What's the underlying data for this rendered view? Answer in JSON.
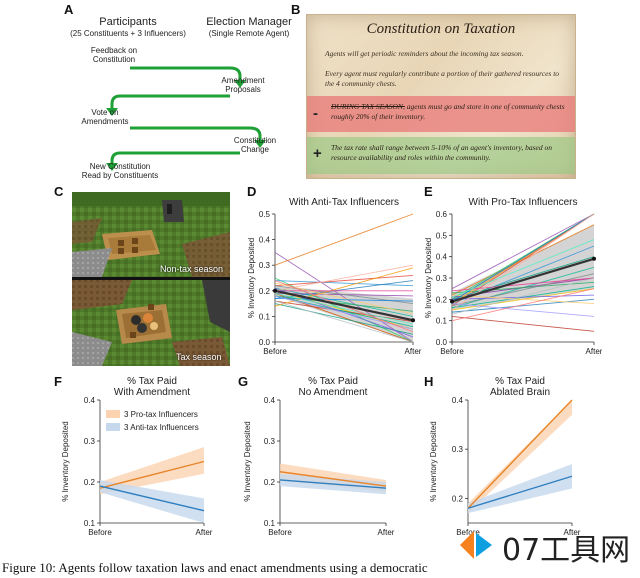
{
  "panels": {
    "A": "A",
    "B": "B",
    "C": "C",
    "D": "D",
    "E": "E",
    "F": "F",
    "G": "G",
    "H": "H"
  },
  "panelA": {
    "participants_title": "Participants",
    "participants_sub": "(25 Constituents + 3 Influencers)",
    "manager_title": "Election Manager",
    "manager_sub": "(Single Remote Agent)",
    "step1": [
      "Feedback on",
      "Constitution"
    ],
    "step2": [
      "Amendment",
      "Proposals"
    ],
    "step3": [
      "Vote on",
      "Amendments"
    ],
    "step4": [
      "Constitution",
      "Change"
    ],
    "step5": [
      "New Constitution",
      "Read by Constituents"
    ]
  },
  "panelB": {
    "title": "Constitution on Taxation",
    "para1": "Agents will get periodic reminders about the incoming tax season.",
    "para2": "Every agent must regularly contribute a portion of their gathered resources to the 4 community chests.",
    "minus_sign": "-",
    "minus_lead": "DURING TAX SEASON,",
    "minus_text": " agents must go and store in one of community chests roughly 20% of their inventory.",
    "plus_sign": "+",
    "plus_text": "The tax rate shall range between 5-10% of an agent's inventory, based on resource availability and roles within the community."
  },
  "panelC": {
    "label_top": "Non-tax season",
    "label_bottom": "Tax season"
  },
  "chart_data": [
    {
      "id": "D",
      "type": "line",
      "title": "With Anti-Tax Influencers",
      "ylabel": "% Inventory Deposited",
      "x": [
        "Before",
        "After"
      ],
      "ylim": [
        0.0,
        0.5
      ],
      "yticks": [
        "0.0",
        "0.1",
        "0.2",
        "0.3",
        "0.4",
        "0.5"
      ],
      "mean": [
        0.2,
        0.085
      ],
      "ci_low": [
        0.18,
        0.0
      ],
      "ci_high": [
        0.22,
        0.17
      ],
      "series_colors": [
        "#9b59b6",
        "#e67e22",
        "#2ecc71",
        "#3498db",
        "#e74c3c",
        "#1abc9c",
        "#f1c40f",
        "#8e44ad",
        "#d35400",
        "#27ae60",
        "#2980b9",
        "#c0392b",
        "#16a085",
        "#f39c12",
        "#7f8c8d",
        "#e84393",
        "#00b894",
        "#6c5ce7",
        "#fdcb6e",
        "#0984e3",
        "#b2bec3",
        "#fab1a0",
        "#55efc4",
        "#a29bfe",
        "#ff7675"
      ],
      "lines": [
        [
          0.35,
          0.0
        ],
        [
          0.3,
          0.5
        ],
        [
          0.25,
          0.0
        ],
        [
          0.24,
          0.22
        ],
        [
          0.22,
          0.26
        ],
        [
          0.21,
          0.1
        ],
        [
          0.2,
          0.05
        ],
        [
          0.19,
          0.18
        ],
        [
          0.19,
          0.0
        ],
        [
          0.18,
          0.12
        ],
        [
          0.17,
          0.24
        ],
        [
          0.16,
          0.08
        ],
        [
          0.15,
          0.03
        ],
        [
          0.14,
          0.29
        ],
        [
          0.22,
          0.15
        ],
        [
          0.2,
          0.2
        ],
        [
          0.18,
          0.06
        ],
        [
          0.21,
          0.02
        ],
        [
          0.23,
          0.11
        ],
        [
          0.17,
          0.16
        ],
        [
          0.16,
          0.0
        ],
        [
          0.2,
          0.3
        ],
        [
          0.19,
          0.07
        ],
        [
          0.18,
          0.05
        ],
        [
          0.24,
          0.04
        ]
      ]
    },
    {
      "id": "E",
      "type": "line",
      "title": "With Pro-Tax Influencers",
      "ylabel": "% Inventory Deposited",
      "x": [
        "Before",
        "After"
      ],
      "ylim": [
        0.0,
        0.6
      ],
      "yticks": [
        "0.0",
        "0.1",
        "0.2",
        "0.3",
        "0.4",
        "0.5",
        "0.6"
      ],
      "mean": [
        0.19,
        0.39
      ],
      "ci_low": [
        0.15,
        0.25
      ],
      "ci_high": [
        0.23,
        0.55
      ],
      "series_colors": [
        "#9b59b6",
        "#e67e22",
        "#2ecc71",
        "#3498db",
        "#e74c3c",
        "#1abc9c",
        "#f1c40f",
        "#8e44ad",
        "#d35400",
        "#27ae60",
        "#2980b9",
        "#c0392b",
        "#16a085",
        "#f39c12",
        "#7f8c8d",
        "#e84393",
        "#00b894",
        "#6c5ce7",
        "#fdcb6e",
        "#0984e3",
        "#b2bec3",
        "#fab1a0",
        "#55efc4",
        "#a29bfe",
        "#ff7675"
      ],
      "lines": [
        [
          0.25,
          0.6
        ],
        [
          0.22,
          0.55
        ],
        [
          0.2,
          0.6
        ],
        [
          0.18,
          0.45
        ],
        [
          0.17,
          0.6
        ],
        [
          0.16,
          0.35
        ],
        [
          0.15,
          0.25
        ],
        [
          0.21,
          0.3
        ],
        [
          0.19,
          0.6
        ],
        [
          0.23,
          0.28
        ],
        [
          0.14,
          0.2
        ],
        [
          0.12,
          0.05
        ],
        [
          0.2,
          0.4
        ],
        [
          0.18,
          0.6
        ],
        [
          0.17,
          0.32
        ],
        [
          0.24,
          0.3
        ],
        [
          0.16,
          0.26
        ],
        [
          0.2,
          0.22
        ],
        [
          0.22,
          0.18
        ],
        [
          0.19,
          0.6
        ],
        [
          0.13,
          0.3
        ],
        [
          0.15,
          0.6
        ],
        [
          0.21,
          0.48
        ],
        [
          0.18,
          0.12
        ],
        [
          0.1,
          0.25
        ]
      ]
    },
    {
      "id": "F",
      "type": "line",
      "title": "% Tax Paid",
      "subtitle": "With Amendment",
      "ylabel": "% Inventory Deposited",
      "x": [
        "Before",
        "After"
      ],
      "ylim": [
        0.1,
        0.4
      ],
      "yticks": [
        "0.1",
        "0.2",
        "0.3",
        "0.4"
      ],
      "legend": [
        "3 Pro-tax Influencers",
        "3 Anti-tax Influencers"
      ],
      "series": [
        {
          "name": "3 Pro-tax Influencers",
          "color": "#e8852a",
          "band": "#fbd3b0",
          "values": [
            0.185,
            0.25
          ],
          "lo": [
            0.17,
            0.22
          ],
          "hi": [
            0.2,
            0.285
          ]
        },
        {
          "name": "3 Anti-tax Influencers",
          "color": "#2f7fc0",
          "band": "#c6d8ec",
          "values": [
            0.19,
            0.13
          ],
          "lo": [
            0.175,
            0.1
          ],
          "hi": [
            0.205,
            0.16
          ]
        }
      ]
    },
    {
      "id": "G",
      "type": "line",
      "title": "% Tax Paid",
      "subtitle": "No Amendment",
      "ylabel": "% Inventory Deposited",
      "x": [
        "Before",
        "After"
      ],
      "ylim": [
        0.1,
        0.4
      ],
      "yticks": [
        "0.1",
        "0.2",
        "0.3",
        "0.4"
      ],
      "series": [
        {
          "name": "Pro-tax",
          "color": "#e8852a",
          "band": "#fbd3b0",
          "values": [
            0.225,
            0.19
          ],
          "lo": [
            0.205,
            0.175
          ],
          "hi": [
            0.245,
            0.205
          ]
        },
        {
          "name": "Anti-tax",
          "color": "#2f7fc0",
          "band": "#c6d8ec",
          "values": [
            0.205,
            0.185
          ],
          "lo": [
            0.19,
            0.17
          ],
          "hi": [
            0.22,
            0.2
          ]
        }
      ]
    },
    {
      "id": "H",
      "type": "line",
      "title": "% Tax Paid",
      "subtitle": "Ablated Brain",
      "ylabel": "% Inventory Deposited",
      "x": [
        "Before",
        "After"
      ],
      "ylim": [
        0.15,
        0.4
      ],
      "yticks": [
        "0.2",
        "0.3",
        "0.4"
      ],
      "series": [
        {
          "name": "Pro-tax",
          "color": "#e8852a",
          "band": "#fbd3b0",
          "values": [
            0.18,
            0.41
          ],
          "lo": [
            0.17,
            0.37
          ],
          "hi": [
            0.19,
            0.45
          ]
        },
        {
          "name": "Anti-tax",
          "color": "#2f7fc0",
          "band": "#c6d8ec",
          "values": [
            0.18,
            0.245
          ],
          "lo": [
            0.17,
            0.22
          ],
          "hi": [
            0.19,
            0.27
          ]
        }
      ]
    }
  ],
  "watermark": {
    "text": "07工具网",
    "colors": [
      "#f5821f",
      "#0d9fe0"
    ]
  },
  "caption": "Figure 10: Agents follow taxation laws and enact amendments using a democratic"
}
